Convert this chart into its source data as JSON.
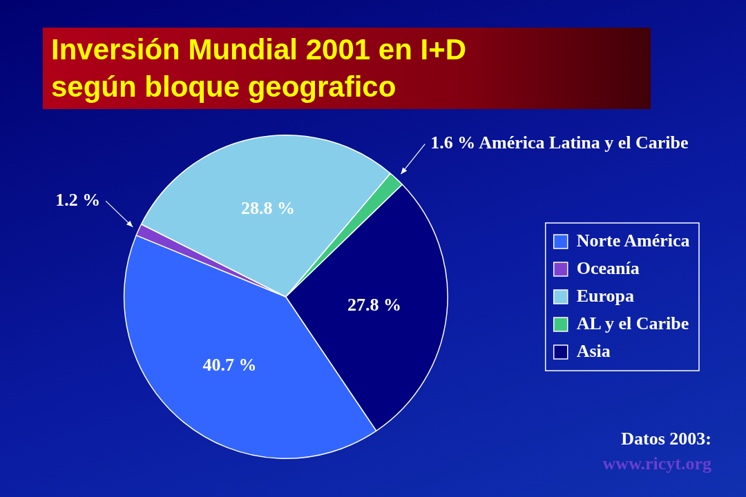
{
  "chart_data": {
    "type": "pie",
    "title": "Inversión Mundial 2001 en I+D\nsegún bloque geografico",
    "categories": [
      "Norte América",
      "Oceanía",
      "Europa",
      "AL y el Caribe",
      "Asia"
    ],
    "values": [
      40.7,
      1.2,
      28.8,
      1.6,
      27.8
    ],
    "colors": [
      "#3366ff",
      "#8040d0",
      "#87ceeb",
      "#40c880",
      "#000080"
    ],
    "value_labels": [
      "40.7 %",
      "1.2 %",
      "28.8 %",
      "1.6 % América Latina y el Caribe",
      "27.8 %"
    ],
    "legend": "right",
    "annotations": [
      "Datos 2003:",
      "www.ricyt.org"
    ]
  }
}
